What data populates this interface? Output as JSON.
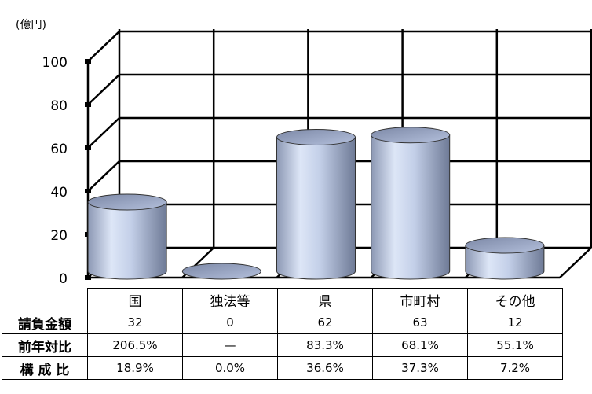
{
  "chart_data": {
    "type": "bar",
    "style": "3d-cylinder",
    "unit_label": "(億円)",
    "categories": [
      "国",
      "独法等",
      "県",
      "市町村",
      "その他"
    ],
    "values": [
      32,
      0,
      62,
      63,
      12
    ],
    "ylim": [
      0,
      100
    ],
    "yticks": [
      0,
      20,
      40,
      60,
      80,
      100
    ],
    "grid": true,
    "bar_color": "#c8d4ec"
  },
  "table": {
    "rows": [
      {
        "label": "請負金額",
        "cells": [
          "32",
          "0",
          "62",
          "63",
          "12"
        ]
      },
      {
        "label": "前年対比",
        "cells": [
          "206.5%",
          "—",
          "83.3%",
          "68.1%",
          "55.1%"
        ]
      },
      {
        "label": "構 成 比",
        "cells": [
          "18.9%",
          "0.0%",
          "36.6%",
          "37.3%",
          "7.2%"
        ]
      }
    ]
  }
}
